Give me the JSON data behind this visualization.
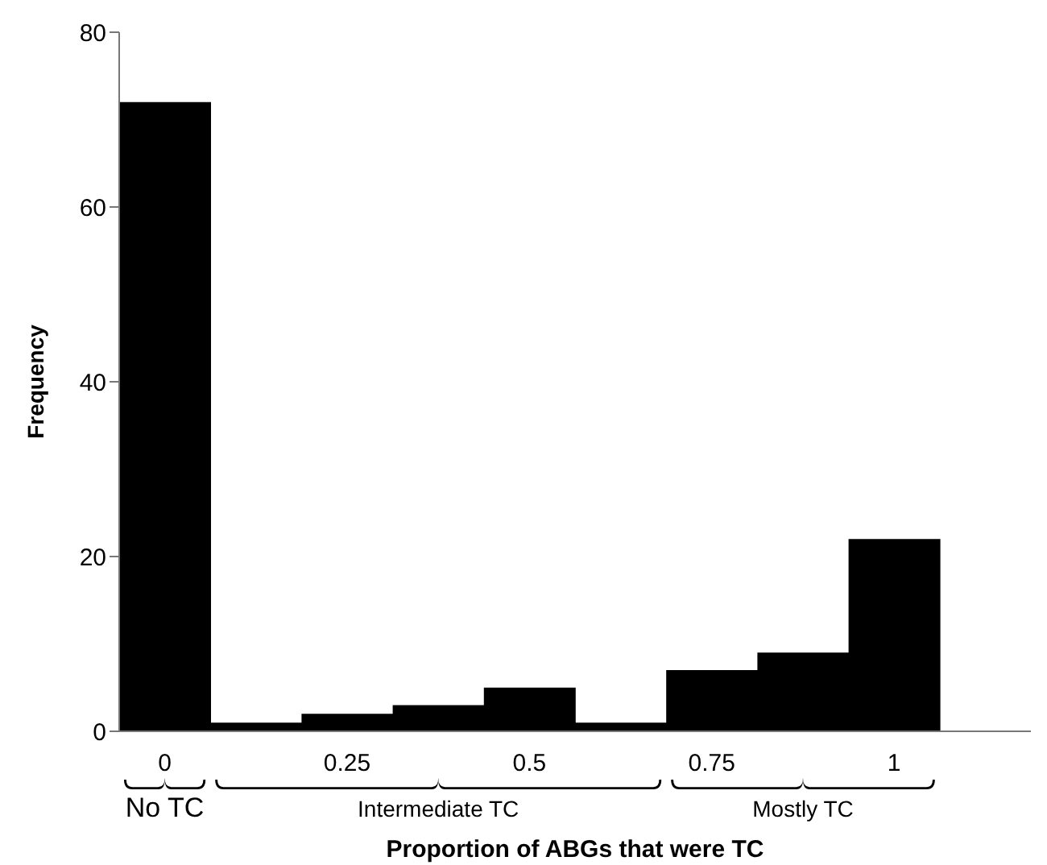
{
  "chart_data": {
    "type": "bar",
    "xlabel": "Proportion of ABGs that were TC",
    "ylabel": "Frequency",
    "categories": [
      "0",
      null,
      "0.25",
      null,
      "0.5",
      null,
      "0.75",
      null,
      "1",
      null
    ],
    "values": [
      72,
      1,
      2,
      3,
      5,
      1,
      7,
      9,
      22,
      null
    ],
    "color": "#000000",
    "ylim": [
      0,
      80
    ],
    "yticks": [
      0,
      20,
      40,
      60,
      80
    ],
    "grid": false,
    "legend": false,
    "annotations": [
      "No TC",
      "Intermediate TC",
      "Mostly TC"
    ]
  }
}
